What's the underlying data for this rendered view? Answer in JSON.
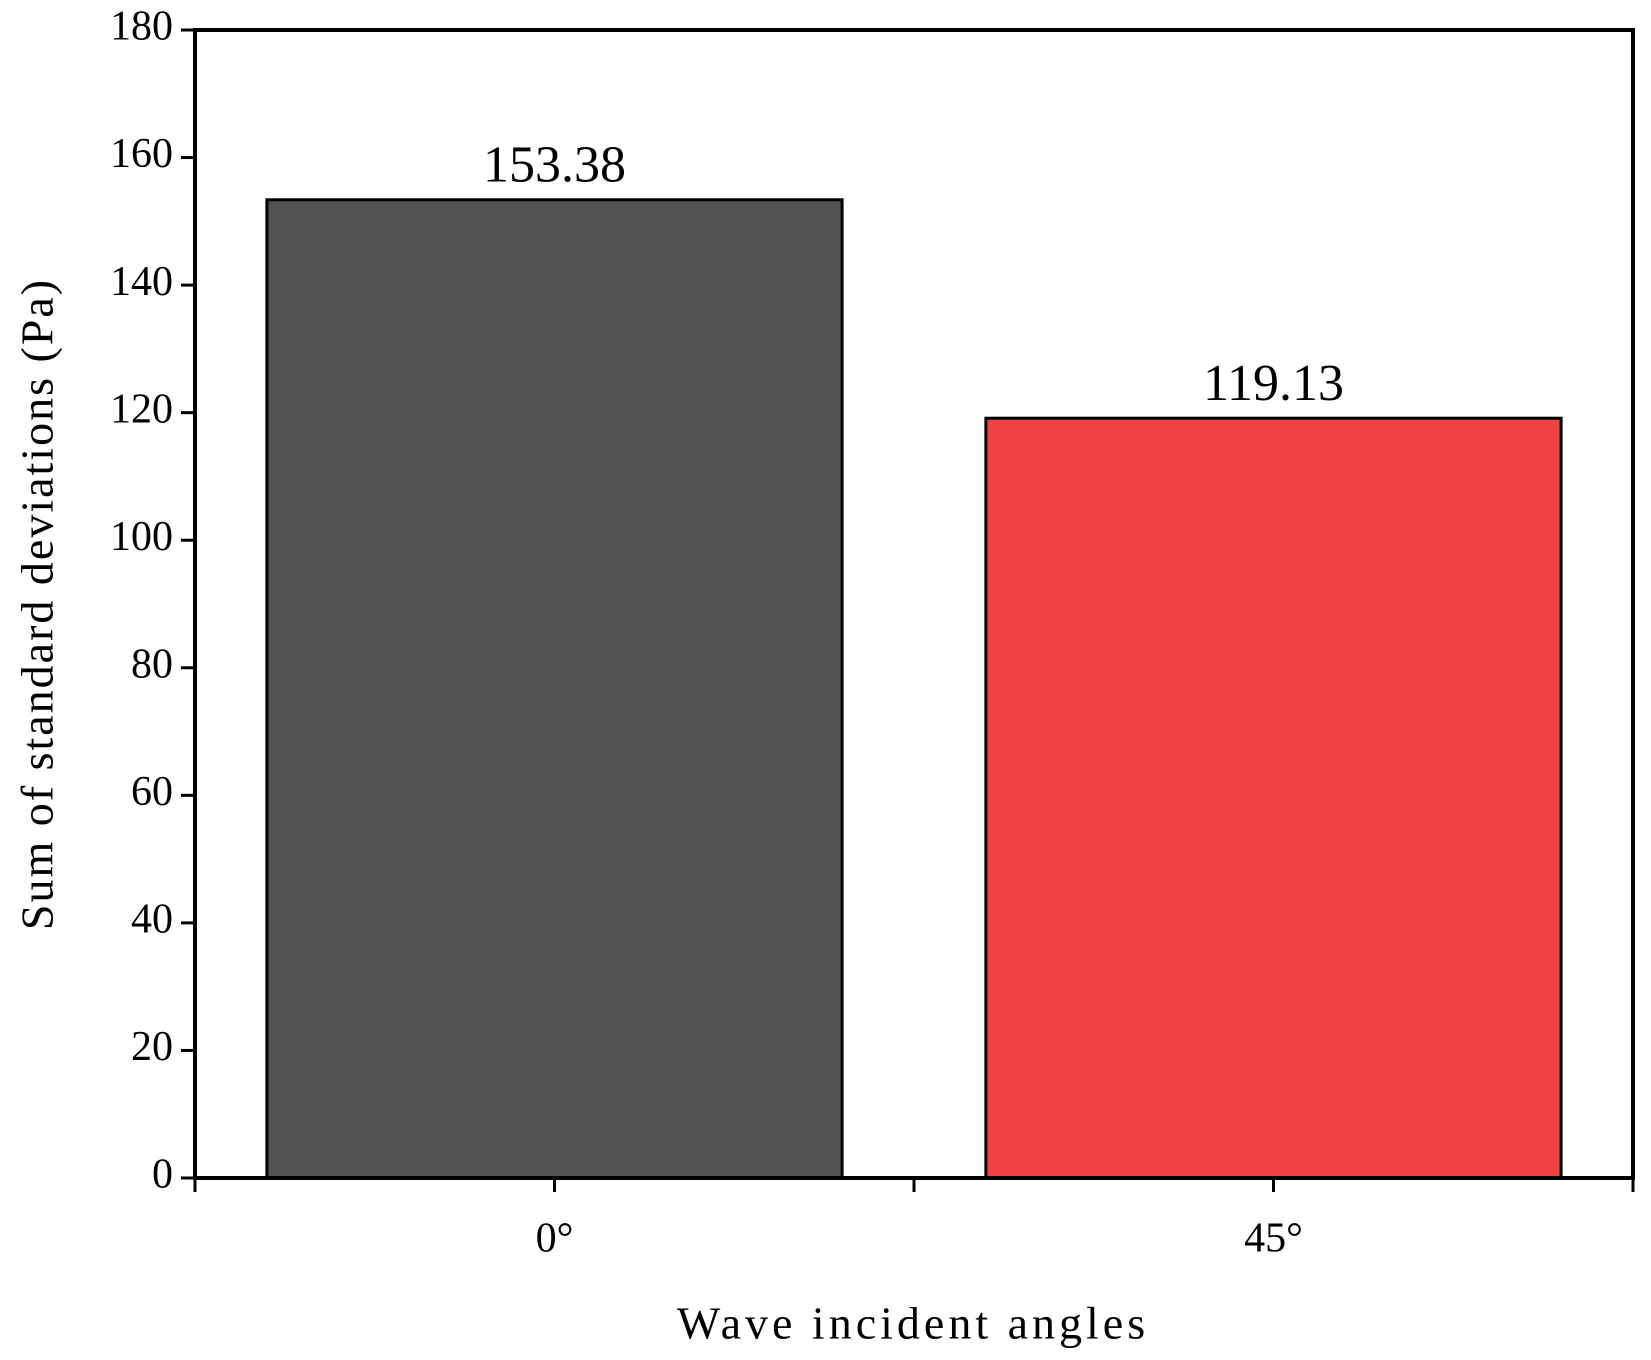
{
  "chart_data": {
    "type": "bar",
    "xlabel": "Wave incident angles",
    "ylabel": "Sum of standard deviations (Pa)",
    "categories": [
      "0°",
      "45°"
    ],
    "values": [
      153.38,
      119.13
    ],
    "colors": [
      "#525252",
      "#ef4242"
    ],
    "ylim": [
      0,
      180
    ],
    "yticks": [
      0,
      20,
      40,
      60,
      80,
      100,
      120,
      140,
      160,
      180
    ],
    "grid": false
  }
}
